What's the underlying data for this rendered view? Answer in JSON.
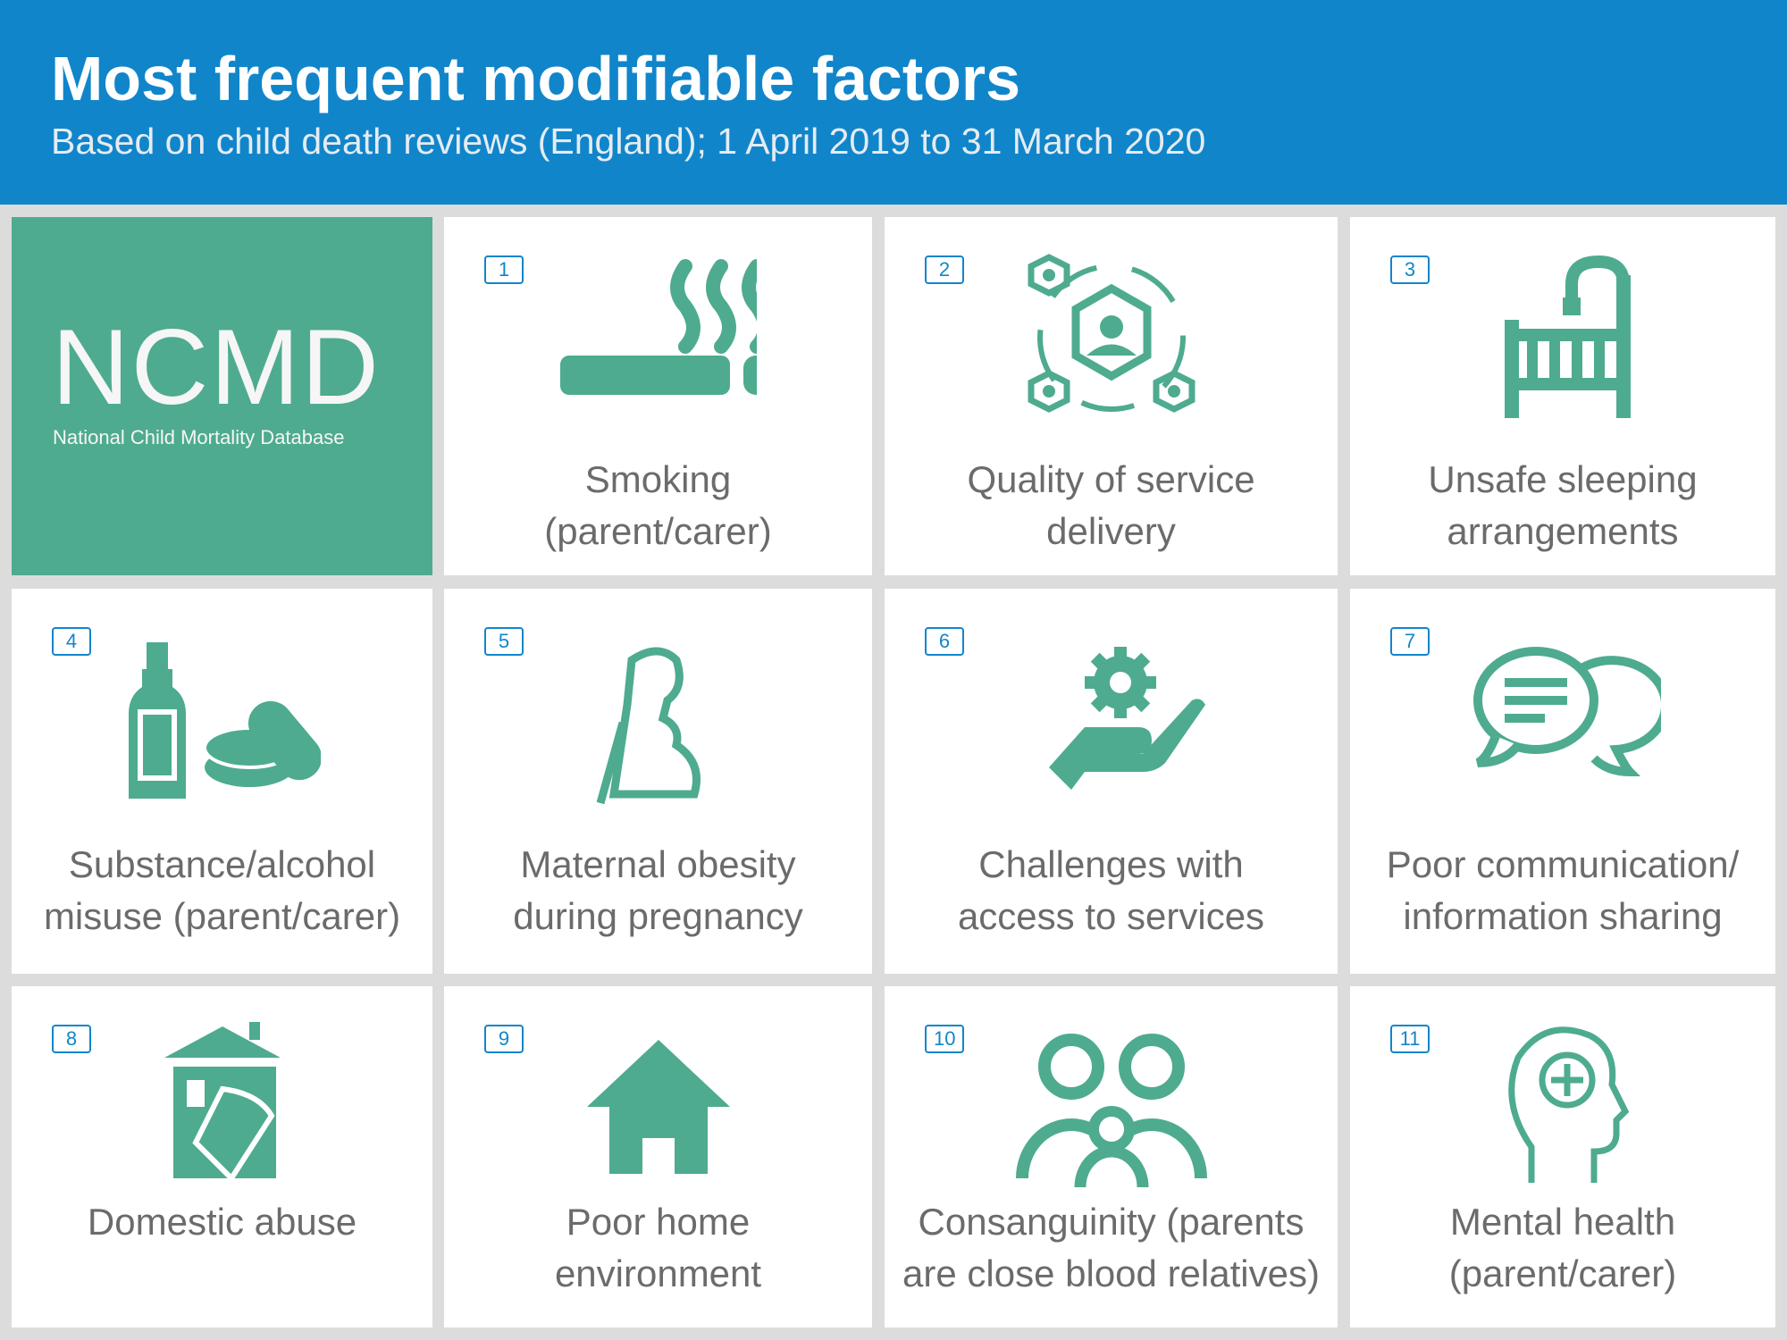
{
  "header": {
    "title": "Most frequent modifiable factors",
    "subtitle": "Based on child death reviews (England); 1 April 2019 to 31 March 2020"
  },
  "logo": {
    "text": "NCMD",
    "subtitle": "National Child Mortality Database"
  },
  "colors": {
    "header": "#1185ca",
    "accent": "#4eab8f",
    "label": "#6b6b6b"
  },
  "factors": [
    {
      "rank": "1",
      "line1": "Smoking",
      "line2": "(parent/carer)",
      "icon": "cigarette-icon"
    },
    {
      "rank": "2",
      "line1": "Quality of service",
      "line2": "delivery",
      "icon": "service-network-icon"
    },
    {
      "rank": "3",
      "line1": "Unsafe sleeping",
      "line2": "arrangements",
      "icon": "cot-icon"
    },
    {
      "rank": "4",
      "line1": "Substance/alcohol",
      "line2": "misuse (parent/carer)",
      "icon": "bottle-pills-icon"
    },
    {
      "rank": "5",
      "line1": "Maternal obesity",
      "line2": "during pregnancy",
      "icon": "pregnant-woman-icon"
    },
    {
      "rank": "6",
      "line1": "Challenges with",
      "line2": "access to services",
      "icon": "hand-gear-icon"
    },
    {
      "rank": "7",
      "line1": "Poor communication/",
      "line2": "information sharing",
      "icon": "speech-bubbles-icon"
    },
    {
      "rank": "8",
      "line1": "Domestic abuse",
      "line2": "",
      "icon": "house-fist-icon"
    },
    {
      "rank": "9",
      "line1": "Poor home",
      "line2": "environment",
      "icon": "house-icon"
    },
    {
      "rank": "10",
      "line1": "Consanguinity (parents",
      "line2": "are close blood relatives)",
      "icon": "family-icon"
    },
    {
      "rank": "11",
      "line1": "Mental health",
      "line2": "(parent/carer)",
      "icon": "head-plus-icon"
    }
  ]
}
